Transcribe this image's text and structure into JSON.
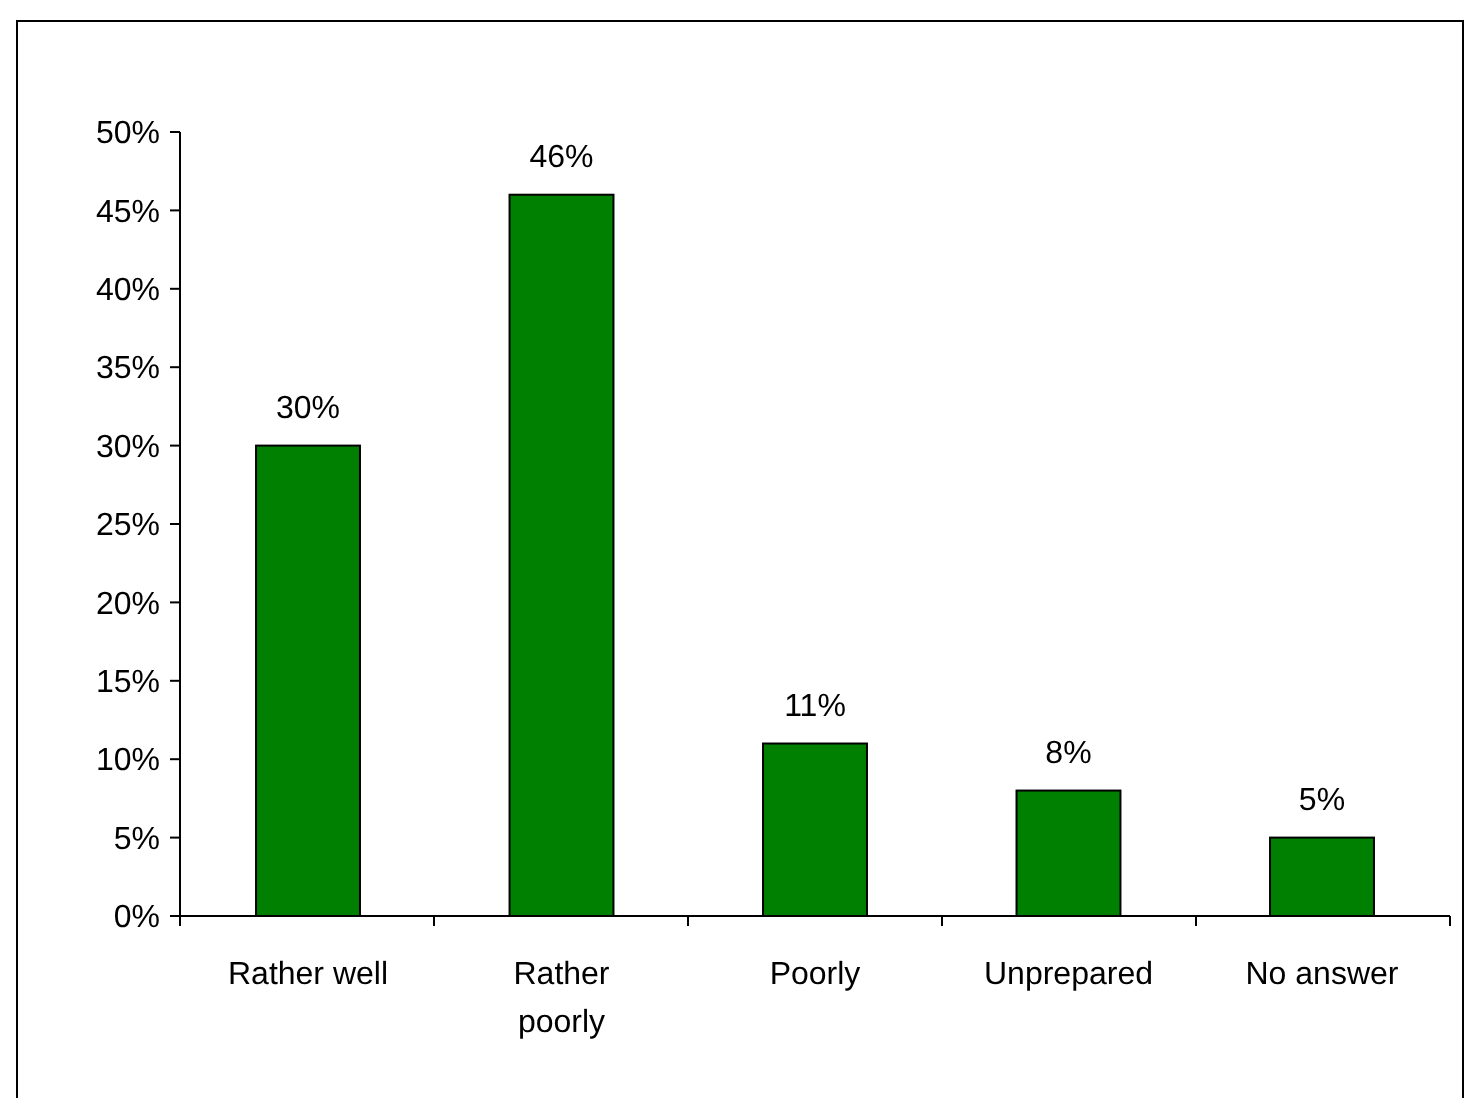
{
  "chart_data": {
    "type": "bar",
    "categories": [
      "Rather well",
      "Rather poorly",
      "Poorly",
      "Unprepared",
      "No answer"
    ],
    "values": [
      30,
      46,
      11,
      8,
      5
    ],
    "value_labels": [
      "30%",
      "46%",
      "11%",
      "8%",
      "5%"
    ],
    "color": "#008000",
    "ylim": [
      0,
      50
    ],
    "yticks": [
      {
        "value": 0,
        "label": "0%"
      },
      {
        "value": 5,
        "label": "5%"
      },
      {
        "value": 10,
        "label": "10%"
      },
      {
        "value": 15,
        "label": "15%"
      },
      {
        "value": 20,
        "label": "20%"
      },
      {
        "value": 25,
        "label": "25%"
      },
      {
        "value": 30,
        "label": "30%"
      },
      {
        "value": 35,
        "label": "35%"
      },
      {
        "value": 40,
        "label": "40%"
      },
      {
        "value": 45,
        "label": "45%"
      },
      {
        "value": 50,
        "label": "50%"
      }
    ]
  }
}
